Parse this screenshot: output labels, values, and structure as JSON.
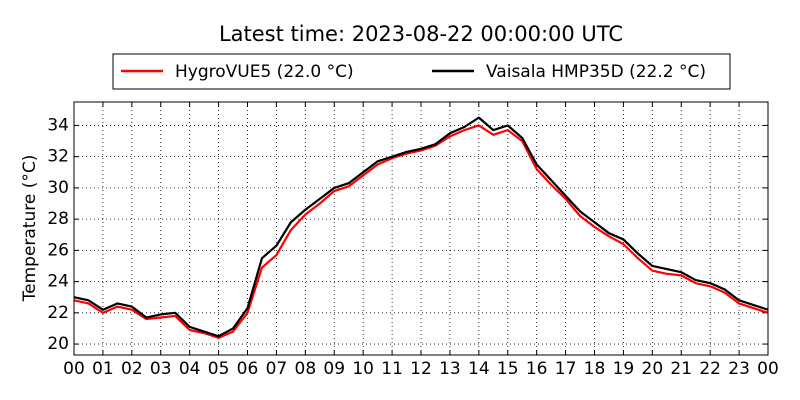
{
  "chart_data": {
    "type": "line",
    "title": "Latest time: 2023-08-22 00:00:00 UTC",
    "ylabel": "Temperature (°C)",
    "x": [
      0,
      0.5,
      1,
      1.5,
      2,
      2.5,
      3,
      3.5,
      4,
      4.5,
      5,
      5.5,
      6,
      6.5,
      7,
      7.5,
      8,
      8.5,
      9,
      9.5,
      10,
      10.5,
      11,
      11.5,
      12,
      12.5,
      13,
      13.5,
      14,
      14.5,
      15,
      15.5,
      16,
      16.5,
      17,
      17.5,
      18,
      18.5,
      19,
      19.5,
      20,
      20.5,
      21,
      21.5,
      22,
      22.5,
      23,
      23.5,
      24
    ],
    "series": [
      {
        "name": "HygroVUE5 (22.0 °C)",
        "color": "#ff0000",
        "values": [
          22.8,
          22.6,
          22.0,
          22.4,
          22.2,
          21.6,
          21.7,
          21.8,
          20.9,
          20.7,
          20.4,
          20.8,
          22.0,
          24.9,
          25.7,
          27.3,
          28.3,
          29.0,
          29.8,
          30.1,
          30.8,
          31.5,
          31.9,
          32.2,
          32.4,
          32.7,
          33.3,
          33.7,
          34.0,
          33.4,
          33.7,
          33.0,
          31.2,
          30.2,
          29.3,
          28.2,
          27.5,
          26.9,
          26.4,
          25.5,
          24.7,
          24.5,
          24.4,
          23.9,
          23.7,
          23.3,
          22.6,
          22.3,
          22.0
        ]
      },
      {
        "name": "Vaisala HMP35D (22.2 °C)",
        "color": "#000000",
        "values": [
          23.0,
          22.8,
          22.2,
          22.6,
          22.4,
          21.7,
          21.9,
          22.0,
          21.1,
          20.8,
          20.5,
          21.0,
          22.3,
          25.5,
          26.3,
          27.8,
          28.6,
          29.3,
          30.0,
          30.3,
          31.0,
          31.7,
          32.0,
          32.3,
          32.5,
          32.8,
          33.5,
          33.9,
          34.5,
          33.7,
          34.0,
          33.2,
          31.5,
          30.5,
          29.5,
          28.5,
          27.8,
          27.1,
          26.7,
          25.8,
          25.0,
          24.8,
          24.6,
          24.1,
          23.9,
          23.5,
          22.8,
          22.5,
          22.2
        ]
      }
    ],
    "xlim": [
      0,
      24
    ],
    "xticks": [
      {
        "value": 0,
        "label": "00"
      },
      {
        "value": 1,
        "label": "01"
      },
      {
        "value": 2,
        "label": "02"
      },
      {
        "value": 3,
        "label": "03"
      },
      {
        "value": 4,
        "label": "04"
      },
      {
        "value": 5,
        "label": "05"
      },
      {
        "value": 6,
        "label": "06"
      },
      {
        "value": 7,
        "label": "07"
      },
      {
        "value": 8,
        "label": "08"
      },
      {
        "value": 9,
        "label": "09"
      },
      {
        "value": 10,
        "label": "10"
      },
      {
        "value": 11,
        "label": "11"
      },
      {
        "value": 12,
        "label": "12"
      },
      {
        "value": 13,
        "label": "13"
      },
      {
        "value": 14,
        "label": "14"
      },
      {
        "value": 15,
        "label": "15"
      },
      {
        "value": 16,
        "label": "16"
      },
      {
        "value": 17,
        "label": "17"
      },
      {
        "value": 18,
        "label": "18"
      },
      {
        "value": 19,
        "label": "19"
      },
      {
        "value": 20,
        "label": "20"
      },
      {
        "value": 21,
        "label": "21"
      },
      {
        "value": 22,
        "label": "22"
      },
      {
        "value": 23,
        "label": "23"
      },
      {
        "value": 24,
        "label": "00"
      }
    ],
    "ylim": [
      19.3,
      35.5
    ],
    "yticks": [
      20,
      22,
      24,
      26,
      28,
      30,
      32,
      34
    ],
    "grid": true,
    "legend": "top"
  }
}
